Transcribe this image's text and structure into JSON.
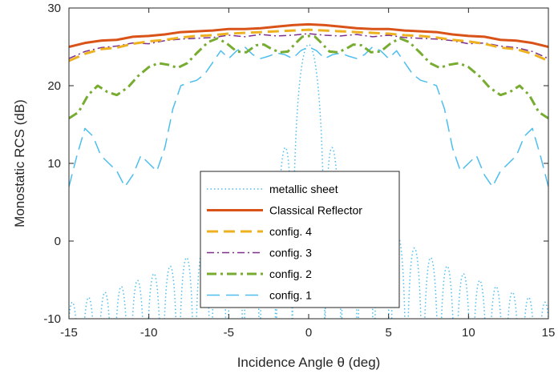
{
  "chart_data": {
    "type": "line",
    "xlabel": "Incidence Angle θ (deg)",
    "ylabel": "Monostatic RCS (dB)",
    "xlim": [
      -15,
      15
    ],
    "ylim": [
      -10,
      30
    ],
    "xticks": [
      -15,
      -10,
      -5,
      0,
      5,
      10,
      15
    ],
    "yticks": [
      -10,
      0,
      10,
      20,
      30
    ],
    "grid": false,
    "legend_position": "lower-center",
    "series": [
      {
        "name": "metallic sheet",
        "color": "#4DBEEE",
        "style": "dotted",
        "width": 1.5,
        "sample": "sinc",
        "peak": 25.3
      },
      {
        "name": "Classical Reflector",
        "color": "#D95319",
        "style": "solid",
        "width": 3,
        "x": [
          -15,
          -14,
          -13,
          -12,
          -11,
          -10,
          -9,
          -8,
          -7,
          -6,
          -5,
          -4,
          -3,
          -2,
          -1,
          0,
          1,
          2,
          3,
          4,
          5,
          6,
          7,
          8,
          9,
          10,
          11,
          12,
          13,
          14,
          15
        ],
        "y": [
          25.0,
          25.5,
          25.8,
          25.9,
          26.3,
          26.4,
          26.6,
          26.9,
          27.0,
          27.1,
          27.3,
          27.3,
          27.4,
          27.6,
          27.8,
          27.9,
          27.8,
          27.6,
          27.4,
          27.3,
          27.3,
          27.1,
          27.0,
          26.9,
          26.6,
          26.4,
          26.3,
          25.9,
          25.8,
          25.5,
          25.0
        ]
      },
      {
        "name": "config. 4",
        "color": "#EDB120",
        "style": "dashed",
        "width": 3,
        "x": [
          -15,
          -14,
          -13,
          -12,
          -11,
          -10,
          -9,
          -8,
          -7,
          -6,
          -5,
          -4,
          -3,
          -2,
          -1,
          0,
          1,
          2,
          3,
          4,
          5,
          6,
          7,
          8,
          9,
          10,
          11,
          12,
          13,
          14,
          15
        ],
        "y": [
          23.2,
          24.1,
          24.7,
          24.9,
          25.4,
          25.7,
          25.9,
          26.2,
          26.4,
          26.5,
          26.7,
          26.8,
          26.9,
          27.0,
          27.1,
          27.2,
          27.1,
          27.0,
          26.9,
          26.8,
          26.7,
          26.5,
          26.4,
          26.2,
          25.9,
          25.7,
          25.4,
          24.9,
          24.7,
          24.1,
          23.2
        ]
      },
      {
        "name": "config. 3",
        "color": "#7E2F8E",
        "style": "dashdot",
        "width": 1.5,
        "x": [
          -15,
          -14,
          -13,
          -12,
          -11,
          -10,
          -9,
          -8,
          -7,
          -6,
          -5,
          -4,
          -3,
          -2,
          -1,
          0,
          1,
          2,
          3,
          4,
          5,
          6,
          7,
          8,
          9,
          10,
          11,
          12,
          13,
          14,
          15
        ],
        "y": [
          23.5,
          24.4,
          24.9,
          25.1,
          25.5,
          25.4,
          25.8,
          26.0,
          26.1,
          26.2,
          26.5,
          26.3,
          26.6,
          26.4,
          26.5,
          26.7,
          26.5,
          26.4,
          26.6,
          26.3,
          26.5,
          26.2,
          26.1,
          26.0,
          25.8,
          25.4,
          25.5,
          25.1,
          24.9,
          24.4,
          23.5
        ]
      },
      {
        "name": "config. 2",
        "color": "#77AC30",
        "style": "dashdot",
        "width": 3,
        "x": [
          -15,
          -14.4,
          -13.8,
          -13.2,
          -12.6,
          -12,
          -11.3,
          -10.7,
          -10,
          -9.4,
          -8.8,
          -8.2,
          -7.6,
          -7,
          -6.3,
          -5.7,
          -5.1,
          -4.5,
          -3.9,
          -3.3,
          -2.8,
          -2.3,
          -1.8,
          -1.3,
          -0.8,
          -0.4,
          0,
          0.4,
          0.8,
          1.3,
          1.8,
          2.3,
          2.8,
          3.3,
          3.9,
          4.5,
          5.1,
          5.7,
          6.3,
          7,
          7.6,
          8.2,
          8.8,
          9.4,
          10,
          10.7,
          11.3,
          12,
          12.6,
          13.2,
          13.8,
          14.4,
          15
        ],
        "y": [
          15.8,
          16.6,
          18.8,
          20.0,
          19.2,
          18.8,
          19.8,
          21.2,
          22.4,
          22.9,
          22.7,
          22.3,
          22.9,
          24.2,
          25.6,
          26.1,
          25.4,
          24.4,
          24.3,
          25.2,
          25.3,
          24.7,
          24.3,
          24.4,
          25.5,
          26.3,
          26.4,
          26.3,
          25.5,
          24.4,
          24.3,
          24.7,
          25.3,
          25.2,
          24.3,
          24.4,
          25.4,
          26.1,
          25.6,
          24.2,
          22.9,
          22.3,
          22.7,
          22.9,
          22.4,
          21.2,
          19.8,
          18.8,
          19.2,
          20.0,
          18.8,
          16.6,
          15.8
        ]
      },
      {
        "name": "config. 1",
        "color": "#4DBEEE",
        "style": "longdash",
        "width": 1.5,
        "x": [
          -15,
          -14.5,
          -14,
          -13.5,
          -13,
          -12.5,
          -12,
          -11.5,
          -11,
          -10.5,
          -10,
          -9.5,
          -9,
          -8.5,
          -8,
          -7.5,
          -7,
          -6.5,
          -6,
          -5.5,
          -5,
          -4.5,
          -4,
          -3.5,
          -3,
          -2.5,
          -2,
          -1.5,
          -1,
          -0.5,
          0,
          0.5,
          1,
          1.5,
          2,
          2.5,
          3,
          3.5,
          4,
          4.5,
          5,
          5.5,
          6,
          6.5,
          7,
          7.5,
          8,
          8.5,
          9,
          9.5,
          10,
          10.5,
          11,
          11.5,
          12,
          12.5,
          13,
          13.5,
          14,
          14.5,
          15
        ],
        "y": [
          7.0,
          11.0,
          14.5,
          13.5,
          11.0,
          10.0,
          9.0,
          7.0,
          8.5,
          11.0,
          10.0,
          9.0,
          12.0,
          17.0,
          20.0,
          20.4,
          20.7,
          21.5,
          23.0,
          24.5,
          23.5,
          24.5,
          25.0,
          24.0,
          23.5,
          23.8,
          24.2,
          24.0,
          23.5,
          24.5,
          25.0,
          24.5,
          23.5,
          24.0,
          24.2,
          23.8,
          23.5,
          24.0,
          25.0,
          24.5,
          23.5,
          24.5,
          23.0,
          21.5,
          20.7,
          20.4,
          20.0,
          17.0,
          12.0,
          9.0,
          10.0,
          11.0,
          8.5,
          7.0,
          9.0,
          10.0,
          11.0,
          13.5,
          14.5,
          11.0,
          7.0
        ]
      }
    ]
  }
}
